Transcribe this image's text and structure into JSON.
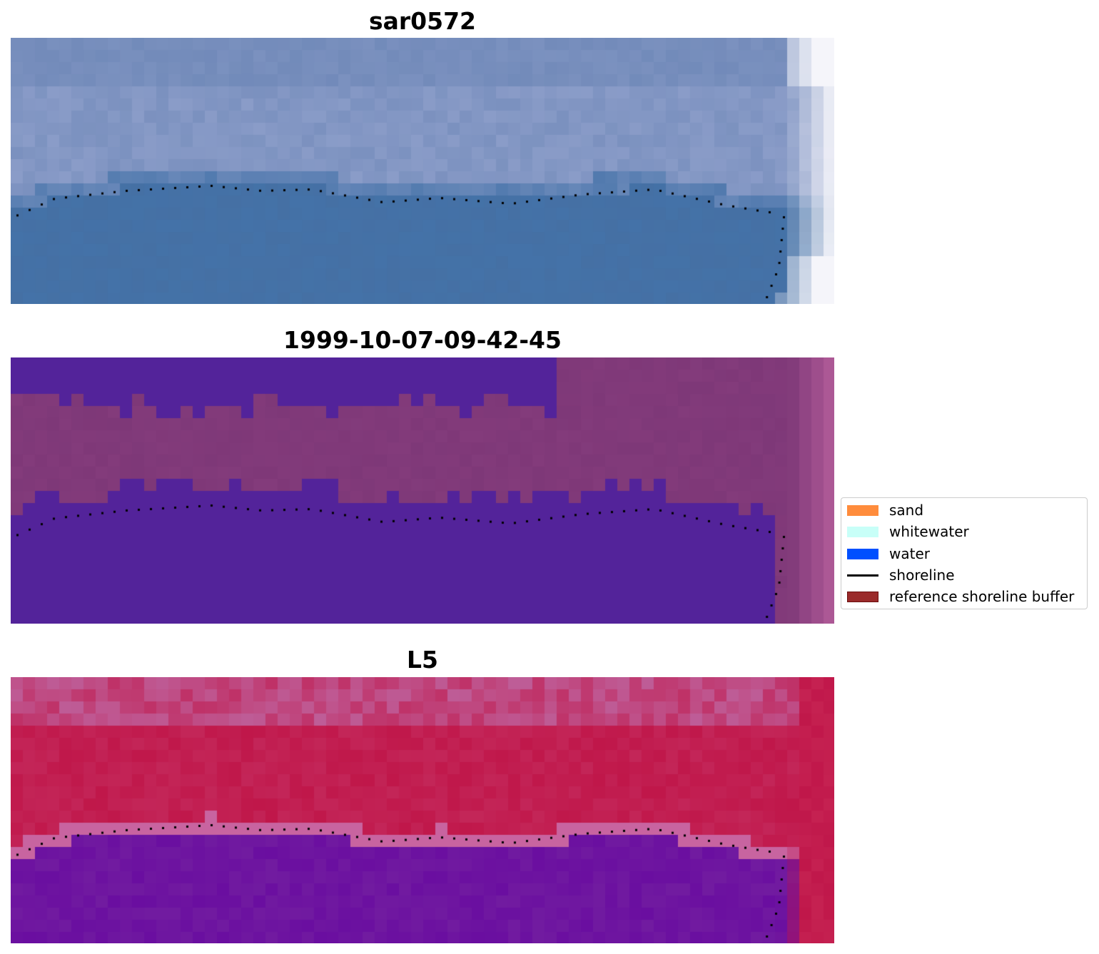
{
  "panels": [
    {
      "title": "sar0572",
      "style": "rgb"
    },
    {
      "title": "1999-10-07-09-42-45",
      "style": "classification"
    },
    {
      "title": "L5",
      "style": "index"
    }
  ],
  "legend": {
    "items": [
      {
        "label": "sand",
        "kind": "patch",
        "color": "#ff8c3c",
        "edge": "#ff8c3c"
      },
      {
        "label": "whitewater",
        "kind": "patch",
        "color": "#c8fff8",
        "edge": "#c8fff8"
      },
      {
        "label": "water",
        "kind": "patch",
        "color": "#0050ff",
        "edge": "#0050ff"
      },
      {
        "label": "shoreline",
        "kind": "line",
        "color": "#000000"
      },
      {
        "label": "reference shoreline buffer",
        "kind": "patch",
        "color": "#9a2a2a",
        "edge": "#6a0d0d"
      }
    ]
  },
  "colors": {
    "rgb_water": "#4472a8",
    "rgb_band": "#8a9cc8",
    "rgb_top": "#6c86b6",
    "class_water": "#53239a",
    "class_land": "#7e3878",
    "index_land": "#c0174a",
    "index_water": "#6a0ea0",
    "shoreline_dots": "#000000"
  }
}
